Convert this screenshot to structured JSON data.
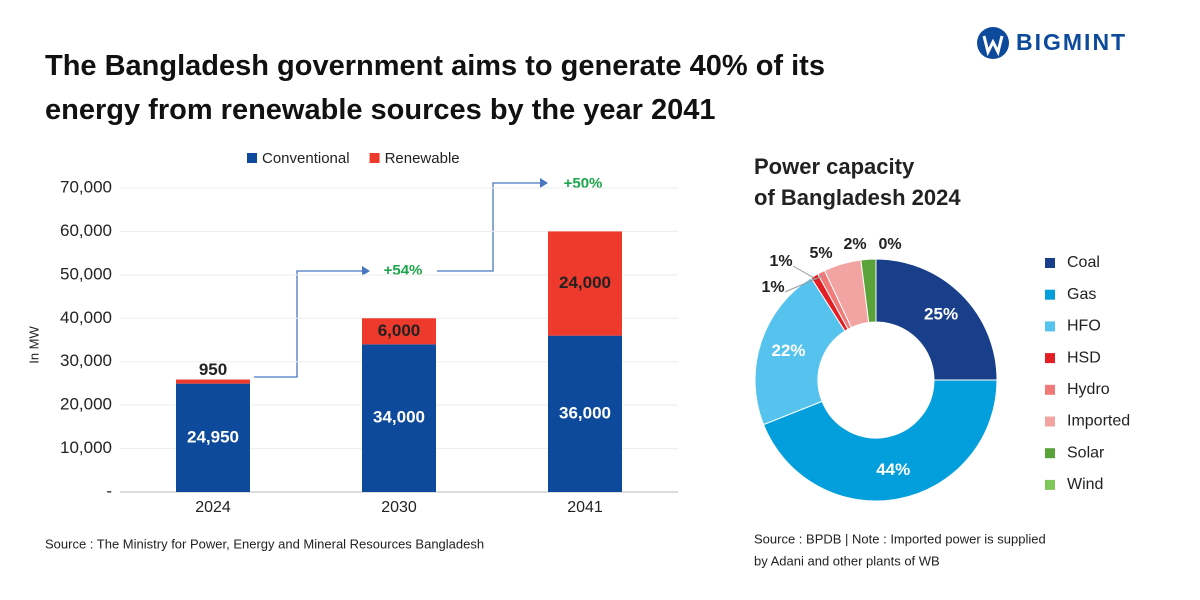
{
  "header": {
    "title": "The Bangladesh government aims to generate 40% of its energy from renewable sources by the year 2041",
    "logo": "BIGMINT"
  },
  "chart_data": [
    {
      "type": "bar",
      "stacked": true,
      "y_label": "In MW",
      "categories": [
        "2024",
        "2030",
        "2041"
      ],
      "series": [
        {
          "name": "Conventional",
          "color": "#0d4a9c",
          "values": [
            24950,
            34000,
            36000
          ],
          "value_labels": [
            "24,950",
            "34,000",
            "36,000"
          ]
        },
        {
          "name": "Renewable",
          "color": "#ee3a2c",
          "values": [
            950,
            6000,
            24000
          ],
          "value_labels": [
            "950",
            "6,000",
            "24,000"
          ]
        }
      ],
      "ylim": [
        0,
        70000
      ],
      "yticks": [
        {
          "value": 0,
          "label": "-"
        },
        {
          "value": 10000,
          "label": "10,000"
        },
        {
          "value": 20000,
          "label": "20,000"
        },
        {
          "value": 30000,
          "label": "30,000"
        },
        {
          "value": 40000,
          "label": "40,000"
        },
        {
          "value": 50000,
          "label": "50,000"
        },
        {
          "value": 60000,
          "label": "60,000"
        },
        {
          "value": 70000,
          "label": "70,000"
        }
      ],
      "grid": true,
      "legend": "top",
      "annotations": [
        "+54%",
        "+50%"
      ],
      "source": "Source : The Ministry for Power, Energy and Mineral Resources Bangladesh"
    },
    {
      "type": "donut",
      "title": [
        "Power capacity",
        "of Bangladesh 2024"
      ],
      "categories": [
        "Coal",
        "Gas",
        "HFO",
        "HSD",
        "Hydro",
        "Imported",
        "Solar",
        "Wind"
      ],
      "values": [
        25,
        44,
        22,
        1,
        1,
        5,
        2,
        0
      ],
      "value_labels": [
        "25%",
        "44%",
        "22%",
        "1%",
        "1%",
        "5%",
        "2%",
        "0%"
      ],
      "colors": [
        "#1a3f8a",
        "#039fdc",
        "#56c3ee",
        "#e31e24",
        "#ef7a78",
        "#f2a4a2",
        "#5aa23a",
        "#7ec85a"
      ],
      "legend": "right",
      "source": [
        "Source : BPDB | Note : Imported power is supplied",
        "by Adani and other plants of WB"
      ]
    }
  ]
}
